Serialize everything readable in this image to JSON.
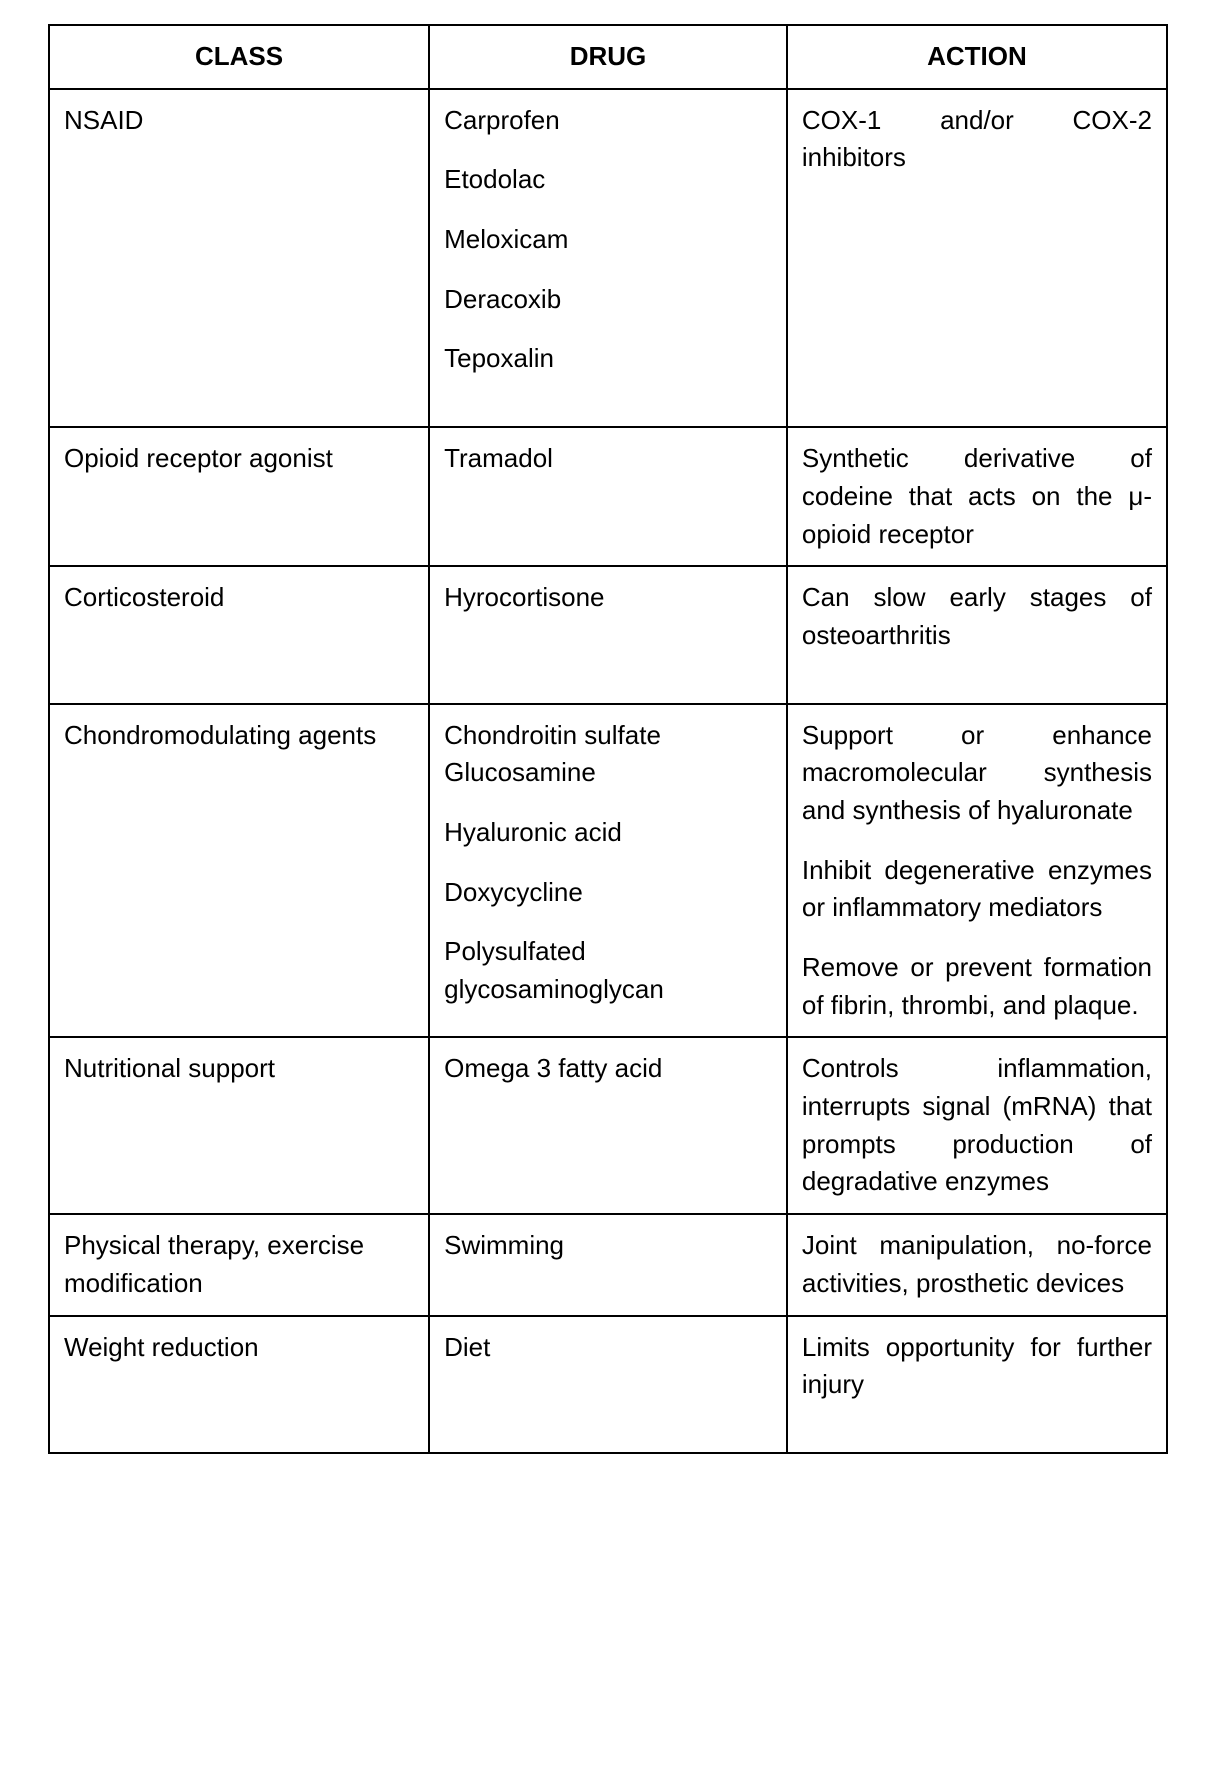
{
  "table": {
    "columns": [
      "CLASS",
      "DRUG",
      "ACTION"
    ],
    "col_widths": [
      "34%",
      "32%",
      "34%"
    ],
    "header_fontsize": 26,
    "cell_fontsize": 26,
    "border_color": "#000000",
    "background_color": "#ffffff",
    "text_color": "#000000",
    "rows": [
      {
        "class": "NSAID",
        "drug_lines": [
          "Carprofen",
          " Etodolac",
          " Meloxicam",
          " Deracoxib",
          "Tepoxalin"
        ],
        "action_paras": [
          "COX-1 and/or COX-2 inhibitors"
        ],
        "drug_spacing": "multi",
        "extra_bottom": true
      },
      {
        "class": "Opioid receptor agonist",
        "drug_lines": [
          "Tramadol"
        ],
        "action_paras": [
          "Synthetic derivative of codeine that acts on the μ-opioid receptor"
        ],
        "drug_spacing": "tight"
      },
      {
        "class": "Corticosteroid",
        "drug_lines": [
          "Hyrocortisone"
        ],
        "action_paras": [
          "Can slow early stages of osteoarthritis"
        ],
        "drug_spacing": "tight",
        "extra_bottom": true
      },
      {
        "class": "Chondromodulating agents",
        "drug_lines": [
          "Chondroitin sulfate Glucosamine",
          " Hyaluronic acid",
          " Doxycycline",
          " Polysulfated glycosaminoglycan"
        ],
        "action_paras": [
          "Support or enhance macromolecular synthesis and synthesis of hyaluronate",
          "Inhibit degenerative enzymes or inflammatory mediators",
          "Remove or prevent formation of fibrin, thrombi, and plaque."
        ],
        "drug_spacing": "multi"
      },
      {
        "class": "Nutritional support",
        "drug_lines": [
          "Omega 3 fatty acid"
        ],
        "action_paras": [
          "Controls inflammation, interrupts signal (mRNA) that prompts production of degradative enzymes"
        ],
        "drug_spacing": "tight"
      },
      {
        "class": "Physical therapy, exercise modification",
        "drug_lines": [
          "Swimming"
        ],
        "action_paras": [
          "Joint manipulation, no-force activities, prosthetic devices"
        ],
        "drug_spacing": "tight"
      },
      {
        "class": "Weight reduction",
        "drug_lines": [
          "Diet"
        ],
        "action_paras": [
          "Limits opportunity for further injury"
        ],
        "drug_spacing": "tight",
        "extra_bottom": true
      }
    ]
  }
}
